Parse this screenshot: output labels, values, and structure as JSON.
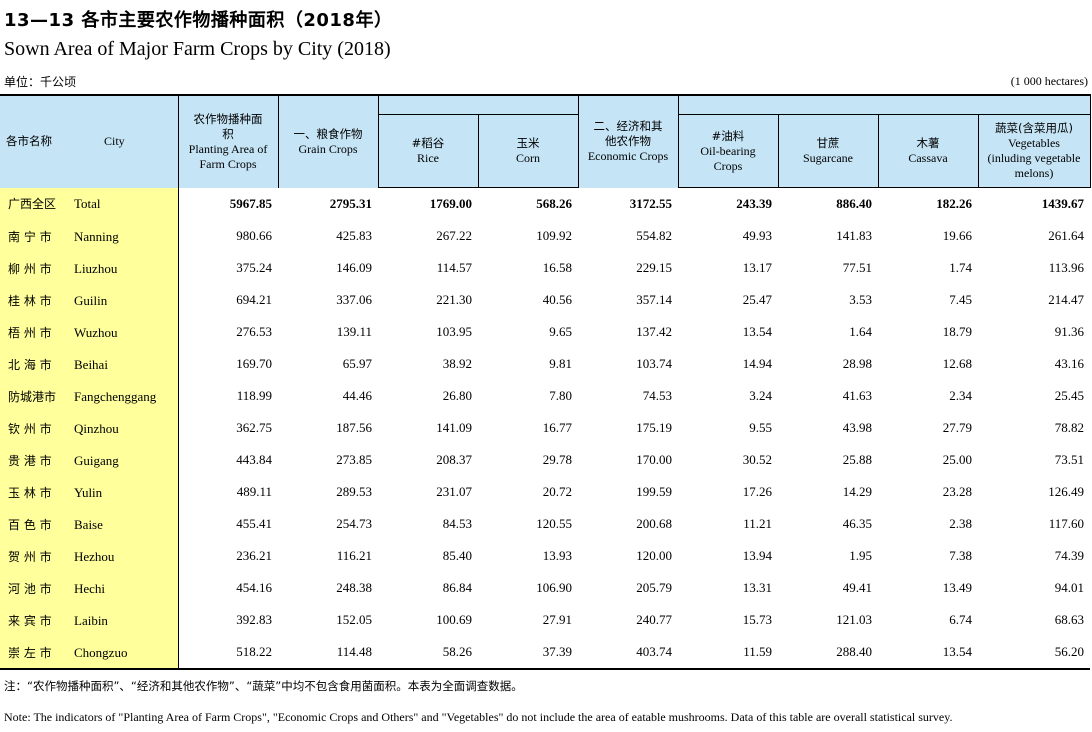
{
  "title": {
    "cn": "13—13  各市主要农作物播种面积（2018年）",
    "en": "Sown Area of Major Farm Crops by City (2018)"
  },
  "unit": {
    "cn": "单位：千公顷",
    "en": "(1 000 hectares)"
  },
  "headers": {
    "city": {
      "cn": "各市名称",
      "en": "City"
    },
    "planting": {
      "cn": "农作物播种面积",
      "en": "Planting Area of Farm Crops"
    },
    "grain": {
      "cn": "一、粮食作物",
      "en": "Grain Crops"
    },
    "rice": {
      "cn": "#稻谷",
      "en": "Rice"
    },
    "corn": {
      "cn": "玉米",
      "en": "Corn"
    },
    "economic": {
      "cn": "二、经济和其他农作物",
      "en": "Economic Crops"
    },
    "oil": {
      "cn": "#油料",
      "en": "Oil-bearing Crops"
    },
    "sugarcane": {
      "cn": "甘蔗",
      "en": "Sugarcane"
    },
    "cassava": {
      "cn": "木薯",
      "en": "Cassava"
    },
    "vegetables": {
      "cn": "蔬菜(含菜用瓜)",
      "en": "Vegetables (inluding vegetable melons)"
    }
  },
  "rows": [
    {
      "cn": "广西全区",
      "en": "Total",
      "v": [
        "5967.85",
        "2795.31",
        "1769.00",
        "568.26",
        "3172.55",
        "243.39",
        "886.40",
        "182.26",
        "1439.67"
      ]
    },
    {
      "cn": "南 宁 市",
      "en": "Nanning",
      "v": [
        "980.66",
        "425.83",
        "267.22",
        "109.92",
        "554.82",
        "49.93",
        "141.83",
        "19.66",
        "261.64"
      ]
    },
    {
      "cn": "柳 州 市",
      "en": "Liuzhou",
      "v": [
        "375.24",
        "146.09",
        "114.57",
        "16.58",
        "229.15",
        "13.17",
        "77.51",
        "1.74",
        "113.96"
      ]
    },
    {
      "cn": "桂 林 市",
      "en": "Guilin",
      "v": [
        "694.21",
        "337.06",
        "221.30",
        "40.56",
        "357.14",
        "25.47",
        "3.53",
        "7.45",
        "214.47"
      ]
    },
    {
      "cn": "梧 州 市",
      "en": "Wuzhou",
      "v": [
        "276.53",
        "139.11",
        "103.95",
        "9.65",
        "137.42",
        "13.54",
        "1.64",
        "18.79",
        "91.36"
      ]
    },
    {
      "cn": "北 海 市",
      "en": "Beihai",
      "v": [
        "169.70",
        "65.97",
        "38.92",
        "9.81",
        "103.74",
        "14.94",
        "28.98",
        "12.68",
        "43.16"
      ]
    },
    {
      "cn": "防城港市",
      "en": "Fangchenggang",
      "v": [
        "118.99",
        "44.46",
        "26.80",
        "7.80",
        "74.53",
        "3.24",
        "41.63",
        "2.34",
        "25.45"
      ]
    },
    {
      "cn": "钦 州 市",
      "en": "Qinzhou",
      "v": [
        "362.75",
        "187.56",
        "141.09",
        "16.77",
        "175.19",
        "9.55",
        "43.98",
        "27.79",
        "78.82"
      ]
    },
    {
      "cn": "贵 港 市",
      "en": "Guigang",
      "v": [
        "443.84",
        "273.85",
        "208.37",
        "29.78",
        "170.00",
        "30.52",
        "25.88",
        "25.00",
        "73.51"
      ]
    },
    {
      "cn": "玉 林 市",
      "en": "Yulin",
      "v": [
        "489.11",
        "289.53",
        "231.07",
        "20.72",
        "199.59",
        "17.26",
        "14.29",
        "23.28",
        "126.49"
      ]
    },
    {
      "cn": "百 色 市",
      "en": "Baise",
      "v": [
        "455.41",
        "254.73",
        "84.53",
        "120.55",
        "200.68",
        "11.21",
        "46.35",
        "2.38",
        "117.60"
      ]
    },
    {
      "cn": "贺 州 市",
      "en": "Hezhou",
      "v": [
        "236.21",
        "116.21",
        "85.40",
        "13.93",
        "120.00",
        "13.94",
        "1.95",
        "7.38",
        "74.39"
      ]
    },
    {
      "cn": "河 池 市",
      "en": "Hechi",
      "v": [
        "454.16",
        "248.38",
        "86.84",
        "106.90",
        "205.79",
        "13.31",
        "49.41",
        "13.49",
        "94.01"
      ]
    },
    {
      "cn": "来 宾 市",
      "en": "Laibin",
      "v": [
        "392.83",
        "152.05",
        "100.69",
        "27.91",
        "240.77",
        "15.73",
        "121.03",
        "6.74",
        "68.63"
      ]
    },
    {
      "cn": "崇 左 市",
      "en": "Chongzuo",
      "v": [
        "518.22",
        "114.48",
        "58.26",
        "37.39",
        "403.74",
        "11.59",
        "288.40",
        "13.54",
        "56.20"
      ]
    }
  ],
  "notes": {
    "cn": "注：“农作物播种面积”、“经济和其他农作物”、“蔬菜”中均不包含食用菌面积。本表为全面调查数据。",
    "en": "Note: The indicators of \"Planting Area of Farm Crops\", \"Economic Crops and Others\" and \"Vegetables\" do not include the area of eatable mushrooms. Data of this table are overall statistical survey."
  },
  "colors": {
    "header_bg": "#c5e4f5",
    "city_col_bg": "#ffff9c"
  }
}
